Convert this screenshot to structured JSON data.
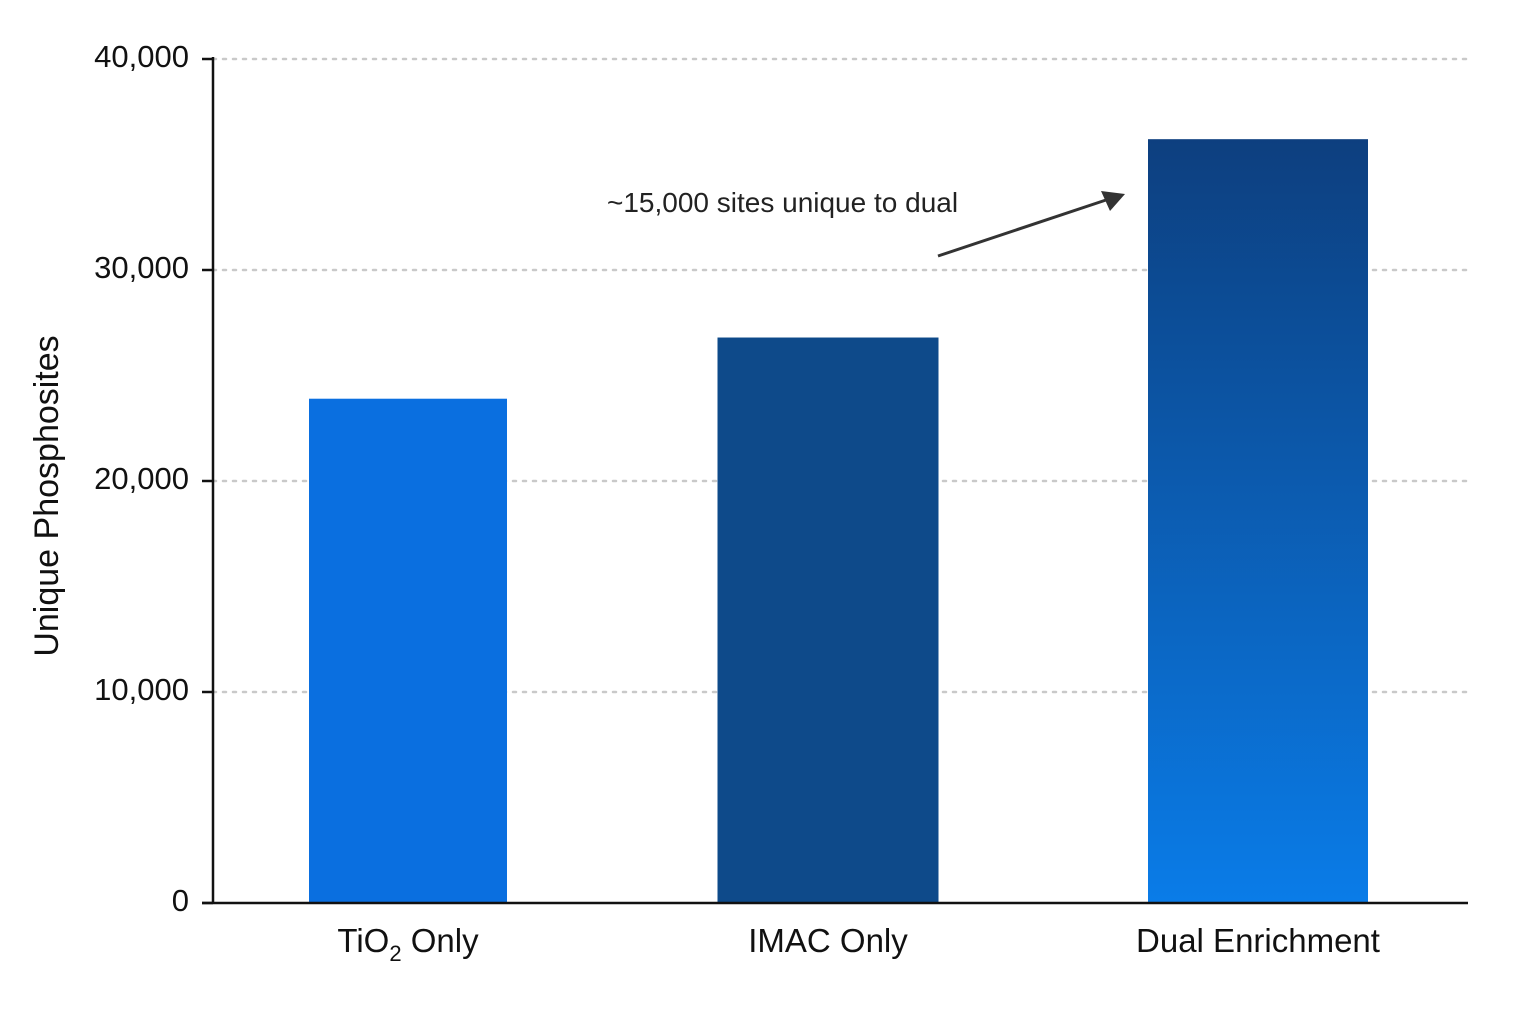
{
  "chart_data": {
    "type": "bar",
    "title": "",
    "xlabel": "",
    "ylabel": "Unique Phosphosites",
    "ylim": [
      0,
      40000
    ],
    "yticks": [
      0,
      10000,
      20000,
      30000,
      40000
    ],
    "ytick_labels": [
      "0",
      "10,000",
      "20,000",
      "30,000",
      "40,000"
    ],
    "grid": true,
    "legend": "none",
    "categories": [
      {
        "base": "TiO",
        "sub": "2",
        "suffix": " Only"
      },
      {
        "base": "IMAC Only",
        "sub": "",
        "suffix": ""
      },
      {
        "base": "Dual Enrichment",
        "sub": "",
        "suffix": ""
      }
    ],
    "values": [
      23900,
      26800,
      36200
    ],
    "bar_colors": [
      [
        "#0a6fe0",
        "#0a6fe0"
      ],
      [
        "#0e4a8a",
        "#0e4a8a"
      ],
      [
        "#0d3f7f",
        "#0a7ce8"
      ]
    ],
    "annotation": {
      "text": "~15,000 sites unique to dual",
      "target_category": 2
    },
    "colors": {
      "axis": "#111111",
      "grid": "#c9c9c9",
      "arrow": "#333333"
    }
  }
}
